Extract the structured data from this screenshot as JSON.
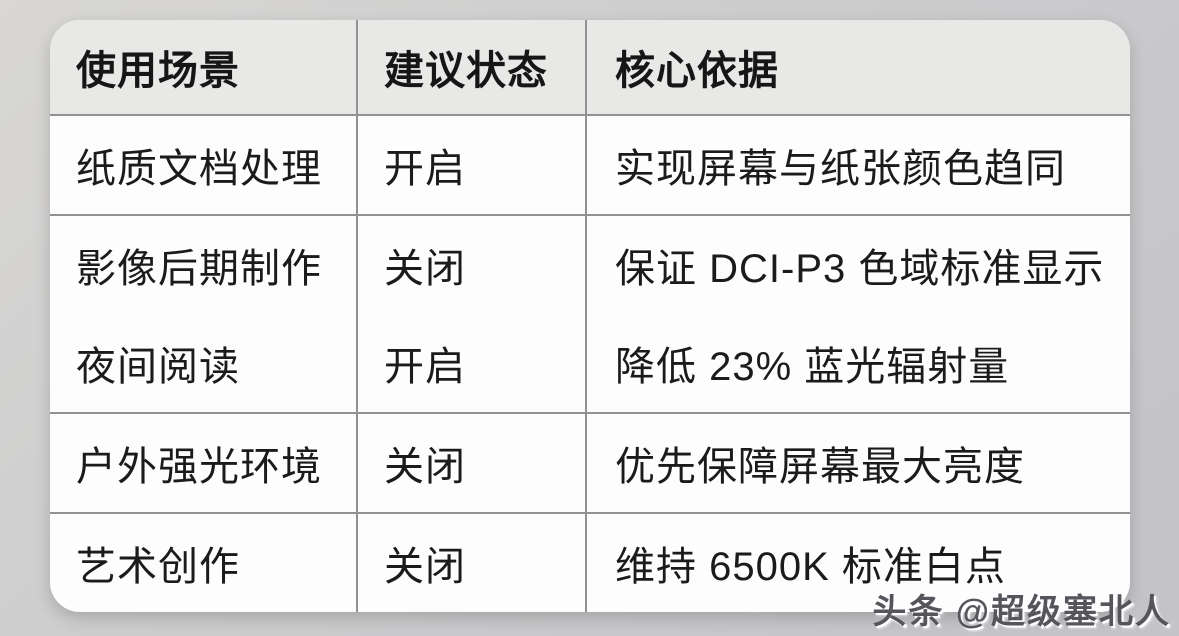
{
  "table": {
    "headers": [
      "使用场景",
      "建议状态",
      "核心依据"
    ],
    "rows": [
      {
        "scenario": "纸质文档处理",
        "status": "开启",
        "basis": "实现屏幕与纸张颜色趋同"
      },
      {
        "scenario": "影像后期制作",
        "status": "关闭",
        "basis": "保证 DCI-P3 色域标准显示"
      },
      {
        "scenario": "夜间阅读",
        "status": "开启",
        "basis": "降低 23% 蓝光辐射量"
      },
      {
        "scenario": "户外强光环境",
        "status": "关闭",
        "basis": "优先保障屏幕最大亮度"
      },
      {
        "scenario": "艺术创作",
        "status": "关闭",
        "basis": "维持 6500K 标准白点"
      }
    ]
  },
  "watermark": {
    "text": "头条 @超级塞北人"
  },
  "colors": {
    "page_background_start": "#d8d7d5",
    "page_background_end": "#c3c3c8",
    "card_background": "#fdfdfd",
    "header_background": "#e8e8e6",
    "border": "#929292",
    "text": "#1b1b1b",
    "watermark_text": "#55555b"
  }
}
